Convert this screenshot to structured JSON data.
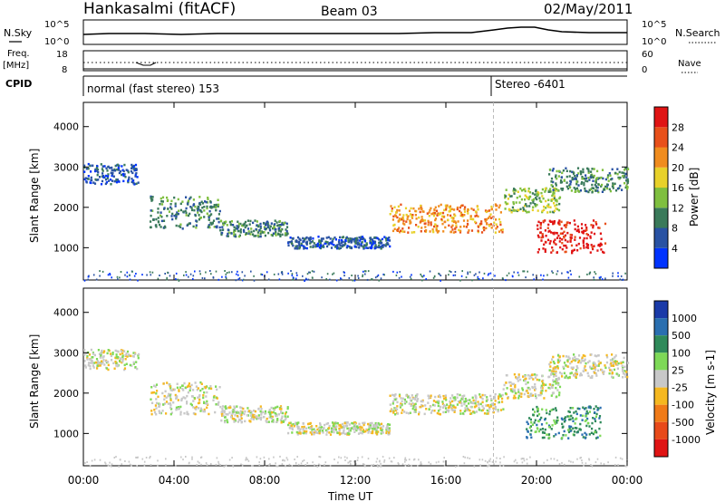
{
  "header": {
    "station": "Hankasalmi (fitACF)",
    "beam": "Beam 03",
    "date": "02/May/2011"
  },
  "strips": {
    "nsky_label": "N.Sky",
    "nsearch_label": "N.Search",
    "nsky_ticks": [
      "10^5",
      "10^0"
    ],
    "freq_label": "Freq.",
    "freq_unit": "[MHz]",
    "freq_ticks": [
      "18",
      "8"
    ],
    "nave_label": "Nave",
    "nave_ticks": [
      "60",
      "0"
    ],
    "cpid_label": "CPID",
    "cpid_segments": [
      {
        "text": "normal (fast stereo) 153",
        "start_hour": 0
      },
      {
        "text": "Stereo -6401",
        "start_hour": 18.1
      }
    ]
  },
  "chart_data": [
    {
      "type": "heatmap",
      "name": "power",
      "ylabel": "Slant Range [km]",
      "ylim": [
        200,
        4600
      ],
      "yticks": [
        "1000",
        "2000",
        "3000",
        "4000"
      ],
      "xlim_hours": [
        0,
        24
      ],
      "xticks": [
        "00:00",
        "04:00",
        "08:00",
        "12:00",
        "16:00",
        "20:00",
        "00:00"
      ],
      "colorbar": {
        "label": "Power [dB]",
        "ticks": [
          "4",
          "8",
          "12",
          "16",
          "20",
          "24",
          "28"
        ],
        "colors": [
          "#0033ff",
          "#2952a3",
          "#3a7a5a",
          "#7fbf3f",
          "#e8d12a",
          "#f08c1e",
          "#e8501a",
          "#e01414"
        ]
      },
      "bands": [
        {
          "from_hour": 0.0,
          "to_hour": 2.4,
          "range_km": [
            2600,
            3100
          ],
          "level": 1
        },
        {
          "from_hour": 2.9,
          "to_hour": 6.0,
          "range_km": [
            1500,
            2300
          ],
          "level": 2
        },
        {
          "from_hour": 6.0,
          "to_hour": 9.0,
          "range_km": [
            1300,
            1700
          ],
          "level": 2
        },
        {
          "from_hour": 9.0,
          "to_hour": 13.5,
          "range_km": [
            1000,
            1300
          ],
          "level": 1
        },
        {
          "from_hour": 13.5,
          "to_hour": 18.5,
          "range_km": [
            1400,
            2100
          ],
          "level": 5
        },
        {
          "from_hour": 18.5,
          "to_hour": 21.0,
          "range_km": [
            1900,
            2500
          ],
          "level": 3
        },
        {
          "from_hour": 20.0,
          "to_hour": 23.0,
          "range_km": [
            900,
            1700
          ],
          "level": 7
        },
        {
          "from_hour": 20.5,
          "to_hour": 24.0,
          "range_km": [
            2400,
            3000
          ],
          "level": 2
        }
      ]
    },
    {
      "type": "heatmap",
      "name": "velocity",
      "ylabel": "Slant Range [km]",
      "ylim": [
        200,
        4600
      ],
      "yticks": [
        "1000",
        "2000",
        "3000",
        "4000"
      ],
      "xlim_hours": [
        0,
        24
      ],
      "xticks": [
        "00:00",
        "04:00",
        "08:00",
        "12:00",
        "16:00",
        "20:00",
        "00:00"
      ],
      "xlabel": "Time UT",
      "colorbar": {
        "label": "Velocity [m s-1]",
        "ticks": [
          "1000",
          "500",
          "100",
          "25",
          "-25",
          "-100",
          "-500",
          "-1000"
        ],
        "colors": [
          "#1a3aa8",
          "#2a6fb0",
          "#2f8a5a",
          "#7ed957",
          "#c8c8c8",
          "#f5b820",
          "#f07b18",
          "#e84a1a",
          "#e01414"
        ]
      },
      "bands": [
        {
          "from_hour": 0.0,
          "to_hour": 2.4,
          "range_km": [
            2600,
            3100
          ],
          "level": 4
        },
        {
          "from_hour": 2.9,
          "to_hour": 6.0,
          "range_km": [
            1500,
            2300
          ],
          "level": 4
        },
        {
          "from_hour": 6.0,
          "to_hour": 9.0,
          "range_km": [
            1300,
            1700
          ],
          "level": 4
        },
        {
          "from_hour": 9.0,
          "to_hour": 13.5,
          "range_km": [
            1000,
            1300
          ],
          "level": 4
        },
        {
          "from_hour": 13.5,
          "to_hour": 18.5,
          "range_km": [
            1500,
            2000
          ],
          "level": 4
        },
        {
          "from_hour": 18.5,
          "to_hour": 21.0,
          "range_km": [
            1900,
            2500
          ],
          "level": 4
        },
        {
          "from_hour": 19.5,
          "to_hour": 22.8,
          "range_km": [
            900,
            1700
          ],
          "level": 2
        },
        {
          "from_hour": 20.5,
          "to_hour": 24.0,
          "range_km": [
            2400,
            3000
          ],
          "level": 4
        }
      ]
    }
  ]
}
